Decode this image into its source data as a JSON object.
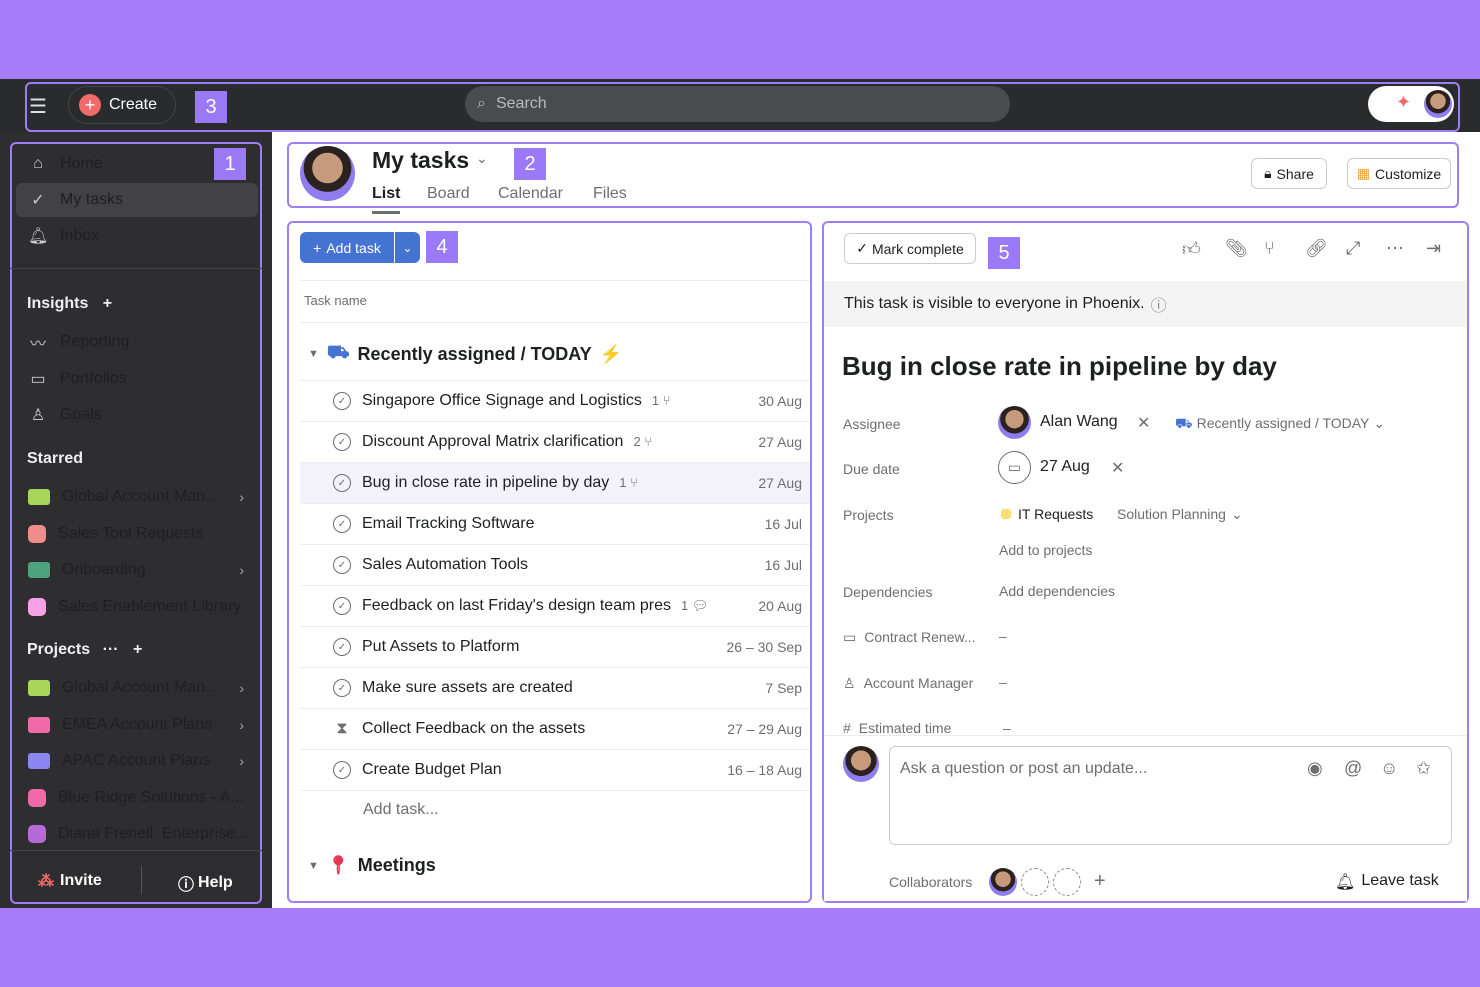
{
  "topbar": {
    "create_label": "Create",
    "search_placeholder": "Search",
    "badge": "3"
  },
  "sidebar": {
    "badge": "1",
    "nav": [
      {
        "label": "Home",
        "icon": "home-icon"
      },
      {
        "label": "My tasks",
        "icon": "check-circle-icon"
      },
      {
        "label": "Inbox",
        "icon": "bell-icon"
      }
    ],
    "insights_label": "Insights",
    "insights": [
      {
        "label": "Reporting"
      },
      {
        "label": "Portfolios"
      },
      {
        "label": "Goals"
      }
    ],
    "starred_label": "Starred",
    "starred": [
      {
        "label": "Global Account Man...",
        "color": "#a8d65a",
        "folder": true
      },
      {
        "label": "Sales Tool Requests",
        "color": "#f28b8b",
        "folder": false
      },
      {
        "label": "Onboarding",
        "color": "#4fa27f",
        "folder": true
      },
      {
        "label": "Sales Enablement Library",
        "color": "#f5a3e6",
        "folder": false
      }
    ],
    "projects_label": "Projects",
    "projects": [
      {
        "label": "Global Account Man...",
        "color": "#a8d65a",
        "folder": true
      },
      {
        "label": "EMEA Account Plans",
        "color": "#f06aa8",
        "folder": true
      },
      {
        "label": "APAC Account Plans",
        "color": "#8b86f0",
        "folder": true
      },
      {
        "label": "Blue Ridge Solutions - A...",
        "color": "#f06aa8",
        "folder": false
      },
      {
        "label": "Diana Frenell: Enterprise...",
        "color": "#b56ad8",
        "folder": false
      }
    ],
    "invite_label": "Invite",
    "help_label": "Help"
  },
  "header": {
    "title": "My tasks",
    "badge": "2",
    "tabs": [
      "List",
      "Board",
      "Calendar",
      "Files"
    ],
    "share_label": "Share",
    "customize_label": "Customize"
  },
  "list": {
    "badge": "4",
    "add_task_label": "Add task",
    "column_header": "Task name",
    "section1": "Recently assigned / TODAY",
    "section2": "Meetings",
    "add_task_row": "Add task...",
    "tasks": [
      {
        "name": "Singapore Office Signage and Logistics",
        "sub": "1",
        "sub_icon": "subtask-icon",
        "date": "30 Aug"
      },
      {
        "name": "Discount Approval Matrix clarification",
        "sub": "2",
        "sub_icon": "subtask-icon",
        "date": "27 Aug"
      },
      {
        "name": "Bug in close rate in pipeline by day",
        "sub": "1",
        "sub_icon": "subtask-icon",
        "date": "27 Aug",
        "selected": true
      },
      {
        "name": "Email Tracking Software",
        "sub": "",
        "date": "16 Jul"
      },
      {
        "name": "Sales Automation Tools",
        "sub": "",
        "date": "16 Jul"
      },
      {
        "name": "Feedback on last Friday's design team pres",
        "sub": "1",
        "sub_icon": "comment-icon",
        "date": "20 Aug"
      },
      {
        "name": "Put Assets to Platform",
        "sub": "",
        "date": "26 – 30 Sep"
      },
      {
        "name": "Make sure assets are created",
        "sub": "",
        "date": "7 Sep"
      },
      {
        "name": "Collect Feedback on the assets",
        "sub": "",
        "date": "27 – 29 Aug",
        "icon": "hourglass-icon"
      },
      {
        "name": "Create Budget Plan",
        "sub": "",
        "date": "16 – 18 Aug"
      }
    ]
  },
  "detail": {
    "badge": "5",
    "mark_complete": "Mark complete",
    "visibility": "This task is visible to everyone in Phoenix.",
    "title": "Bug in close rate in pipeline by day",
    "assignee_label": "Assignee",
    "assignee": "Alan Wang",
    "section": "Recently assigned / TODAY",
    "due_label": "Due date",
    "due": "27 Aug",
    "projects_label": "Projects",
    "project1": "IT Requests",
    "project1_section": "Solution Planning",
    "add_projects": "Add to projects",
    "dependencies_label": "Dependencies",
    "add_dependencies": "Add dependencies",
    "field1_label": "Contract Renew...",
    "field1_value": "–",
    "field2_label": "Account Manager",
    "field2_value": "–",
    "field3_label": "Estimated time",
    "field3_value": "–",
    "comment_placeholder": "Ask a question or post an update...",
    "collaborators_label": "Collaborators",
    "leave_task": "Leave task"
  }
}
